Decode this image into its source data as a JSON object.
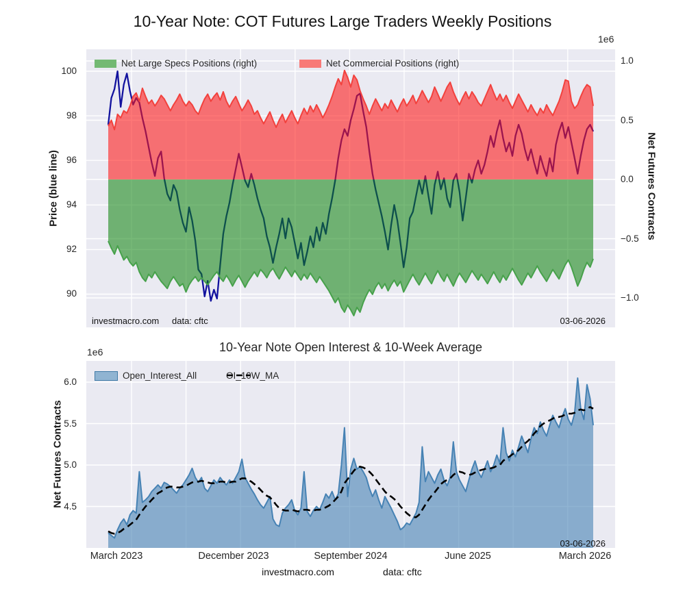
{
  "figure": {
    "title": "10-Year Note: COT Futures Large Traders Weekly Positions",
    "footer": {
      "site": "investmacro.com",
      "source": "data: cftc"
    }
  },
  "top_chart": {
    "offset_label": "1e6",
    "ylabel_left": "Price (blue line)",
    "ylabel_right": "Net Futures Contracts",
    "yticks_left": [
      "100",
      "98",
      "96",
      "94",
      "92",
      "90"
    ],
    "yticks_right": [
      "1.0",
      "0.5",
      "0.0",
      "−0.5",
      "−1.0"
    ],
    "legend": [
      {
        "label": "Net Large Specs Positions (right)",
        "swatch_color": "#73b973"
      },
      {
        "label": "Net Commercial Positions (right)",
        "swatch_color": "#f87977"
      }
    ],
    "annotation_site": "investmacro.com",
    "annotation_source": "data: cftc",
    "annotation_date": "03-06-2026"
  },
  "bottom_chart": {
    "title": "10-Year Note Open Interest & 10-Week Average",
    "offset_label": "1e6",
    "ylabel": "Net Futures Contracts",
    "yticks": [
      "6.0",
      "5.5",
      "5.0",
      "4.5"
    ],
    "xticks": [
      "March 2023",
      "December 2023",
      "September 2024",
      "June 2025",
      "March 2026"
    ],
    "legend": [
      {
        "label": "Open_Interest_All",
        "swatch_color": "#90b4d2"
      },
      {
        "label": "OI_10W_MA",
        "line_style": "dashed-black"
      }
    ],
    "annotation_date": "03-06-2026"
  },
  "chart_data": [
    {
      "type": "line",
      "title": "10-Year Note: COT Futures Large Traders Weekly Positions",
      "x_unit": "weekly observations, March 2023 to March 2026 (157 points)",
      "x_range_labels": [
        "March 2023",
        "March 2026"
      ],
      "last_date": "03-06-2026",
      "ylabel_left": "Price (blue line)",
      "ylabel_right": "Net Futures Contracts",
      "ylim_left": [
        88.5,
        101.0
      ],
      "ylim_right": [
        -1.22,
        1.09
      ],
      "right_axis_scale": "1e6",
      "grid": true,
      "legend_position": "top-inside",
      "series": [
        {
          "name": "Price",
          "axis": "left",
          "style": "line",
          "color": "#12129e",
          "values": [
            97.6,
            98.8,
            99.2,
            100.0,
            98.4,
            99.4,
            99.9,
            99.1,
            98.5,
            98.8,
            98.6,
            97.9,
            97.3,
            96.6,
            95.9,
            95.3,
            96.1,
            96.4,
            95.2,
            94.5,
            94.2,
            94.9,
            94.6,
            93.8,
            93.2,
            92.8,
            93.9,
            93.3,
            92.4,
            91.1,
            90.9,
            89.9,
            90.6,
            89.7,
            90.2,
            89.8,
            91.3,
            92.7,
            93.5,
            94.1,
            94.9,
            95.6,
            96.3,
            95.7,
            95.1,
            94.8,
            95.4,
            94.9,
            94.3,
            93.8,
            93.4,
            92.6,
            92.1,
            91.4,
            92.1,
            92.7,
            93.4,
            92.5,
            93.4,
            93.0,
            92.3,
            91.6,
            92.3,
            91.3,
            91.9,
            92.6,
            92.1,
            93.0,
            92.4,
            93.2,
            92.7,
            93.6,
            94.3,
            95.1,
            96.1,
            96.9,
            97.4,
            97.1,
            97.8,
            98.3,
            98.9,
            99.0,
            98.2,
            97.5,
            96.4,
            95.4,
            94.7,
            94.1,
            93.5,
            92.8,
            92.0,
            93.1,
            94.0,
            93.3,
            92.3,
            91.2,
            92.1,
            93.4,
            93.7,
            94.4,
            95.1,
            94.5,
            95.3,
            94.4,
            93.6,
            94.9,
            95.5,
            94.7,
            95.2,
            94.3,
            93.9,
            95.1,
            95.4,
            94.6,
            93.3,
            94.3,
            95.4,
            95.0,
            95.6,
            96.0,
            95.4,
            95.8,
            96.4,
            97.1,
            96.6,
            97.3,
            97.8,
            97.0,
            96.4,
            96.8,
            96.2,
            97.1,
            97.6,
            97.2,
            96.5,
            96.0,
            96.5,
            95.9,
            95.4,
            96.2,
            95.7,
            95.3,
            96.1,
            95.5,
            96.7,
            97.3,
            97.7,
            97.0,
            97.5,
            96.8,
            96.1,
            95.4,
            96.2,
            96.9,
            97.4,
            97.6,
            97.3
          ]
        },
        {
          "name": "Net Large Specs Positions (right)",
          "axis": "right",
          "style": "area",
          "color": "green",
          "values": [
            -0.52,
            -0.58,
            -0.63,
            -0.56,
            -0.62,
            -0.68,
            -0.65,
            -0.7,
            -0.73,
            -0.7,
            -0.78,
            -0.83,
            -0.86,
            -0.8,
            -0.83,
            -0.78,
            -0.82,
            -0.86,
            -0.89,
            -0.92,
            -0.86,
            -0.82,
            -0.86,
            -0.9,
            -0.88,
            -0.95,
            -0.89,
            -0.85,
            -0.82,
            -0.86,
            -0.83,
            -0.86,
            -0.89,
            -0.85,
            -0.81,
            -0.78,
            -0.83,
            -0.86,
            -0.81,
            -0.85,
            -0.9,
            -0.85,
            -0.81,
            -0.86,
            -0.91,
            -0.86,
            -0.82,
            -0.78,
            -0.82,
            -0.76,
            -0.79,
            -0.83,
            -0.78,
            -0.75,
            -0.8,
            -0.84,
            -0.79,
            -0.74,
            -0.78,
            -0.82,
            -0.77,
            -0.81,
            -0.85,
            -0.8,
            -0.84,
            -0.79,
            -0.83,
            -0.87,
            -0.82,
            -0.86,
            -0.9,
            -0.94,
            -0.99,
            -1.04,
            -1.0,
            -1.08,
            -1.12,
            -1.06,
            -1.1,
            -1.15,
            -1.08,
            -1.12,
            -1.04,
            -0.98,
            -0.93,
            -0.97,
            -0.91,
            -0.87,
            -0.92,
            -0.88,
            -0.94,
            -0.89,
            -0.85,
            -0.9,
            -0.86,
            -0.95,
            -0.9,
            -0.85,
            -0.8,
            -0.85,
            -0.89,
            -0.84,
            -0.79,
            -0.84,
            -0.88,
            -0.82,
            -0.77,
            -0.82,
            -0.86,
            -0.8,
            -0.85,
            -0.9,
            -0.84,
            -0.79,
            -0.83,
            -0.87,
            -0.82,
            -0.77,
            -0.81,
            -0.85,
            -0.8,
            -0.84,
            -0.88,
            -0.83,
            -0.78,
            -0.83,
            -0.87,
            -0.81,
            -0.85,
            -0.8,
            -0.75,
            -0.8,
            -0.85,
            -0.89,
            -0.84,
            -0.79,
            -0.83,
            -0.78,
            -0.73,
            -0.78,
            -0.82,
            -0.86,
            -0.81,
            -0.76,
            -0.8,
            -0.84,
            -0.78,
            -0.72,
            -0.68,
            -0.74,
            -0.82,
            -0.9,
            -0.84,
            -0.76,
            -0.7,
            -0.74,
            -0.67
          ]
        },
        {
          "name": "Net Commercial Positions (right)",
          "axis": "right",
          "style": "area",
          "color": "red",
          "values": [
            0.45,
            0.5,
            0.42,
            0.55,
            0.52,
            0.58,
            0.56,
            0.62,
            0.7,
            0.73,
            0.66,
            0.77,
            0.7,
            0.64,
            0.67,
            0.62,
            0.66,
            0.71,
            0.68,
            0.63,
            0.58,
            0.63,
            0.67,
            0.72,
            0.66,
            0.62,
            0.66,
            0.63,
            0.58,
            0.55,
            0.62,
            0.68,
            0.72,
            0.66,
            0.7,
            0.73,
            0.67,
            0.74,
            0.66,
            0.61,
            0.66,
            0.7,
            0.64,
            0.58,
            0.62,
            0.67,
            0.62,
            0.55,
            0.58,
            0.52,
            0.47,
            0.52,
            0.57,
            0.5,
            0.44,
            0.5,
            0.55,
            0.48,
            0.53,
            0.58,
            0.52,
            0.47,
            0.54,
            0.6,
            0.55,
            0.62,
            0.57,
            0.63,
            0.58,
            0.52,
            0.57,
            0.63,
            0.7,
            0.78,
            0.85,
            0.8,
            0.92,
            0.86,
            0.78,
            0.88,
            0.84,
            0.75,
            0.68,
            0.62,
            0.55,
            0.62,
            0.68,
            0.63,
            0.58,
            0.64,
            0.6,
            0.67,
            0.62,
            0.57,
            0.63,
            0.68,
            0.62,
            0.66,
            0.71,
            0.64,
            0.69,
            0.75,
            0.7,
            0.65,
            0.7,
            0.78,
            0.72,
            0.66,
            0.72,
            0.78,
            0.82,
            0.74,
            0.68,
            0.63,
            0.69,
            0.74,
            0.68,
            0.74,
            0.7,
            0.65,
            0.62,
            0.68,
            0.74,
            0.8,
            0.73,
            0.67,
            0.72,
            0.66,
            0.71,
            0.65,
            0.6,
            0.66,
            0.72,
            0.67,
            0.62,
            0.57,
            0.63,
            0.58,
            0.54,
            0.6,
            0.56,
            0.63,
            0.58,
            0.54,
            0.6,
            0.66,
            0.74,
            0.84,
            0.83,
            0.66,
            0.6,
            0.63,
            0.7,
            0.76,
            0.8,
            0.78,
            0.62
          ]
        }
      ]
    },
    {
      "type": "area",
      "title": "10-Year Note Open Interest & 10-Week Average",
      "x_unit": "weekly observations, March 2023 to March 2026 (157 points)",
      "x_tick_labels": [
        "March 2023",
        "December 2023",
        "September 2024",
        "June 2025",
        "March 2026"
      ],
      "last_date": "03-06-2026",
      "ylabel": "Net Futures Contracts",
      "ylim": [
        4.0,
        6.26
      ],
      "axis_scale": "1e6",
      "grid": true,
      "legend_position": "top-inside",
      "series": [
        {
          "name": "Open_Interest_All",
          "style": "area",
          "color": "#4682b4",
          "values": [
            4.18,
            4.15,
            4.12,
            4.22,
            4.3,
            4.35,
            4.28,
            4.4,
            4.45,
            4.42,
            4.92,
            4.55,
            4.58,
            4.62,
            4.68,
            4.72,
            4.76,
            4.72,
            4.79,
            4.77,
            4.74,
            4.7,
            4.66,
            4.72,
            4.76,
            4.82,
            4.88,
            4.96,
            4.85,
            4.79,
            4.85,
            4.72,
            4.68,
            4.75,
            4.82,
            4.78,
            4.85,
            4.8,
            4.76,
            4.82,
            4.78,
            4.85,
            4.92,
            5.07,
            4.85,
            4.78,
            4.71,
            4.65,
            4.58,
            4.52,
            4.48,
            4.55,
            4.62,
            4.35,
            4.28,
            4.26,
            4.42,
            4.48,
            4.52,
            4.58,
            4.45,
            4.4,
            4.48,
            4.92,
            4.44,
            4.38,
            4.45,
            4.5,
            4.46,
            4.55,
            4.65,
            4.6,
            4.68,
            4.58,
            4.65,
            5.0,
            5.45,
            4.62,
            4.95,
            5.08,
            4.95,
            4.98,
            4.92,
            4.85,
            4.72,
            4.62,
            4.7,
            4.58,
            4.48,
            4.62,
            4.55,
            4.48,
            4.4,
            4.32,
            4.22,
            4.25,
            4.3,
            4.28,
            4.35,
            4.42,
            4.55,
            5.22,
            4.8,
            4.92,
            4.85,
            4.78,
            4.88,
            4.95,
            4.82,
            4.75,
            4.85,
            5.28,
            4.92,
            4.82,
            4.75,
            4.68,
            4.82,
            4.95,
            5.05,
            4.92,
            4.85,
            4.95,
            5.05,
            4.92,
            5.0,
            5.12,
            5.02,
            5.45,
            5.15,
            5.05,
            5.18,
            5.1,
            5.22,
            5.35,
            5.25,
            5.15,
            5.32,
            5.45,
            5.38,
            5.52,
            5.42,
            5.35,
            5.48,
            5.6,
            5.52,
            5.45,
            5.58,
            5.68,
            5.55,
            5.48,
            5.62,
            6.05,
            5.68,
            5.55,
            5.97,
            5.8,
            5.48
          ]
        },
        {
          "name": "OI_10W_MA",
          "style": "dashed-line",
          "color": "#000000",
          "values": [
            4.2,
            4.18,
            4.17,
            4.18,
            4.2,
            4.23,
            4.25,
            4.28,
            4.31,
            4.34,
            4.4,
            4.45,
            4.5,
            4.54,
            4.58,
            4.62,
            4.66,
            4.68,
            4.71,
            4.73,
            4.74,
            4.74,
            4.73,
            4.73,
            4.74,
            4.75,
            4.77,
            4.79,
            4.8,
            4.8,
            4.81,
            4.8,
            4.79,
            4.78,
            4.78,
            4.79,
            4.8,
            4.8,
            4.79,
            4.79,
            4.8,
            4.8,
            4.82,
            4.84,
            4.84,
            4.82,
            4.8,
            4.77,
            4.74,
            4.7,
            4.66,
            4.63,
            4.61,
            4.57,
            4.52,
            4.48,
            4.46,
            4.45,
            4.45,
            4.46,
            4.45,
            4.44,
            4.45,
            4.46,
            4.46,
            4.45,
            4.45,
            4.46,
            4.46,
            4.47,
            4.49,
            4.51,
            4.54,
            4.58,
            4.62,
            4.68,
            4.78,
            4.83,
            4.88,
            4.93,
            4.97,
            4.98,
            4.97,
            4.95,
            4.92,
            4.88,
            4.83,
            4.78,
            4.73,
            4.68,
            4.64,
            4.62,
            4.59,
            4.55,
            4.5,
            4.46,
            4.42,
            4.39,
            4.37,
            4.37,
            4.4,
            4.46,
            4.52,
            4.58,
            4.63,
            4.67,
            4.72,
            4.77,
            4.8,
            4.82,
            4.84,
            4.88,
            4.91,
            4.92,
            4.91,
            4.89,
            4.88,
            4.89,
            4.91,
            4.93,
            4.94,
            4.95,
            4.96,
            4.96,
            4.97,
            4.99,
            5.0,
            5.05,
            5.08,
            5.1,
            5.13,
            5.15,
            5.18,
            5.22,
            5.26,
            5.29,
            5.33,
            5.38,
            5.42,
            5.47,
            5.5,
            5.52,
            5.54,
            5.56,
            5.58,
            5.58,
            5.59,
            5.61,
            5.62,
            5.62,
            5.63,
            5.66,
            5.67,
            5.66,
            5.68,
            5.7,
            5.68
          ]
        }
      ]
    }
  ]
}
